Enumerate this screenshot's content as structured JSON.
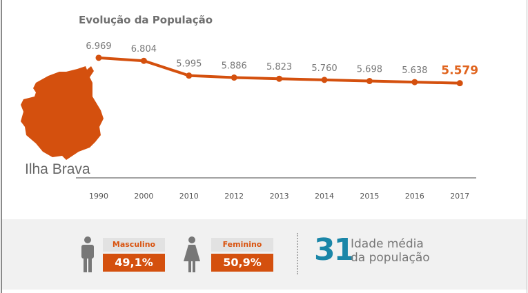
{
  "chart_data": {
    "type": "line",
    "title": "Evolução da População",
    "categories": [
      "1990",
      "2000",
      "2010",
      "2012",
      "2013",
      "2014",
      "2015",
      "2016",
      "2017"
    ],
    "values": [
      6969,
      6804,
      5995,
      5886,
      5823,
      5760,
      5698,
      5638,
      5579
    ],
    "data_labels": [
      "6.969",
      "6.804",
      "5.995",
      "5.886",
      "5.823",
      "5.760",
      "5.698",
      "5.638",
      "5.579"
    ],
    "ylim": [
      400,
      7000
    ],
    "grid": false,
    "color": "#d4500e",
    "label_color": "#777777",
    "highlight_label_color": "#e0641e"
  },
  "map": {
    "label": "Ilha Brava",
    "color": "#d4500e"
  },
  "stats": {
    "male": {
      "label": "Masculino",
      "value": "49,1%",
      "icon": "male-person-icon"
    },
    "female": {
      "label": "Feminino",
      "value": "50,9%",
      "icon": "female-person-icon"
    },
    "age": {
      "value": "31",
      "line1": "Idade média",
      "line2": "da população",
      "color": "#1a86a8"
    }
  }
}
